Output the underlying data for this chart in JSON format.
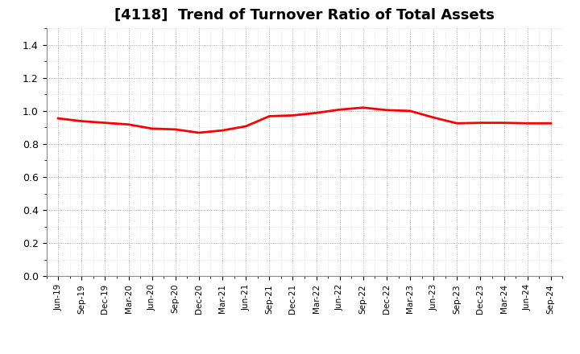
{
  "title": "[4118]  Trend of Turnover Ratio of Total Assets",
  "title_fontsize": 13,
  "line_color": "#FF0000",
  "line_width": 2.0,
  "background_color": "#FFFFFF",
  "grid_major_color": "#999999",
  "grid_minor_color": "#CCCCCC",
  "ylim": [
    0.0,
    1.5
  ],
  "yticks": [
    0.0,
    0.2,
    0.4,
    0.6,
    0.8,
    1.0,
    1.2,
    1.4
  ],
  "xlabel_fontsize": 7.5,
  "ylabel_fontsize": 9,
  "x_labels": [
    "Jun-19",
    "Sep-19",
    "Dec-19",
    "Mar-20",
    "Jun-20",
    "Sep-20",
    "Dec-20",
    "Mar-21",
    "Jun-21",
    "Sep-21",
    "Dec-21",
    "Mar-22",
    "Jun-22",
    "Sep-22",
    "Dec-22",
    "Mar-23",
    "Jun-23",
    "Sep-23",
    "Dec-23",
    "Mar-24",
    "Jun-24",
    "Sep-24"
  ],
  "values": [
    0.955,
    0.938,
    0.928,
    0.918,
    0.893,
    0.888,
    0.868,
    0.882,
    0.907,
    0.968,
    0.973,
    0.988,
    1.008,
    1.02,
    1.005,
    1.0,
    0.96,
    0.925,
    0.928,
    0.928,
    0.925,
    0.925
  ]
}
